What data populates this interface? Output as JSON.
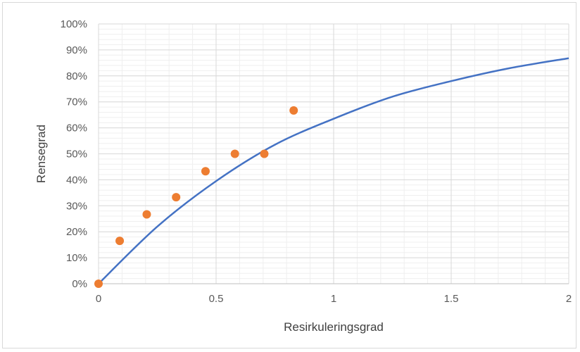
{
  "chart_data": {
    "type": "scatter",
    "title": "",
    "xlabel": "Resirkuleringsgrad",
    "ylabel": "Rensegrad",
    "xlim": [
      0,
      2
    ],
    "ylim": [
      0,
      1
    ],
    "x_ticks": [
      0,
      0.5,
      1,
      1.5,
      2
    ],
    "x_tick_labels": [
      "0",
      "0.5",
      "1",
      "1.5",
      "2"
    ],
    "y_ticks": [
      0,
      0.1,
      0.2,
      0.3,
      0.4,
      0.5,
      0.6,
      0.7,
      0.8,
      0.9,
      1.0
    ],
    "y_tick_labels": [
      "0%",
      "10%",
      "20%",
      "30%",
      "40%",
      "50%",
      "60%",
      "70%",
      "80%",
      "90%",
      "100%"
    ],
    "grid": true,
    "legend": "none",
    "series": [
      {
        "type": "scatter",
        "color": "#ED7D31",
        "points": [
          {
            "x": 0.0,
            "y": 0.0
          },
          {
            "x": 0.09,
            "y": 0.165
          },
          {
            "x": 0.205,
            "y": 0.267
          },
          {
            "x": 0.33,
            "y": 0.333
          },
          {
            "x": 0.455,
            "y": 0.433
          },
          {
            "x": 0.58,
            "y": 0.5
          },
          {
            "x": 0.705,
            "y": 0.5
          },
          {
            "x": 0.83,
            "y": 0.667
          }
        ]
      },
      {
        "type": "line",
        "color": "#4472C4",
        "points": [
          {
            "x": 0.0,
            "y": 0.0
          },
          {
            "x": 0.25,
            "y": 0.22
          },
          {
            "x": 0.5,
            "y": 0.395
          },
          {
            "x": 0.75,
            "y": 0.535
          },
          {
            "x": 1.0,
            "y": 0.635
          },
          {
            "x": 1.25,
            "y": 0.72
          },
          {
            "x": 1.5,
            "y": 0.78
          },
          {
            "x": 1.75,
            "y": 0.83
          },
          {
            "x": 2.0,
            "y": 0.868
          }
        ]
      }
    ]
  }
}
